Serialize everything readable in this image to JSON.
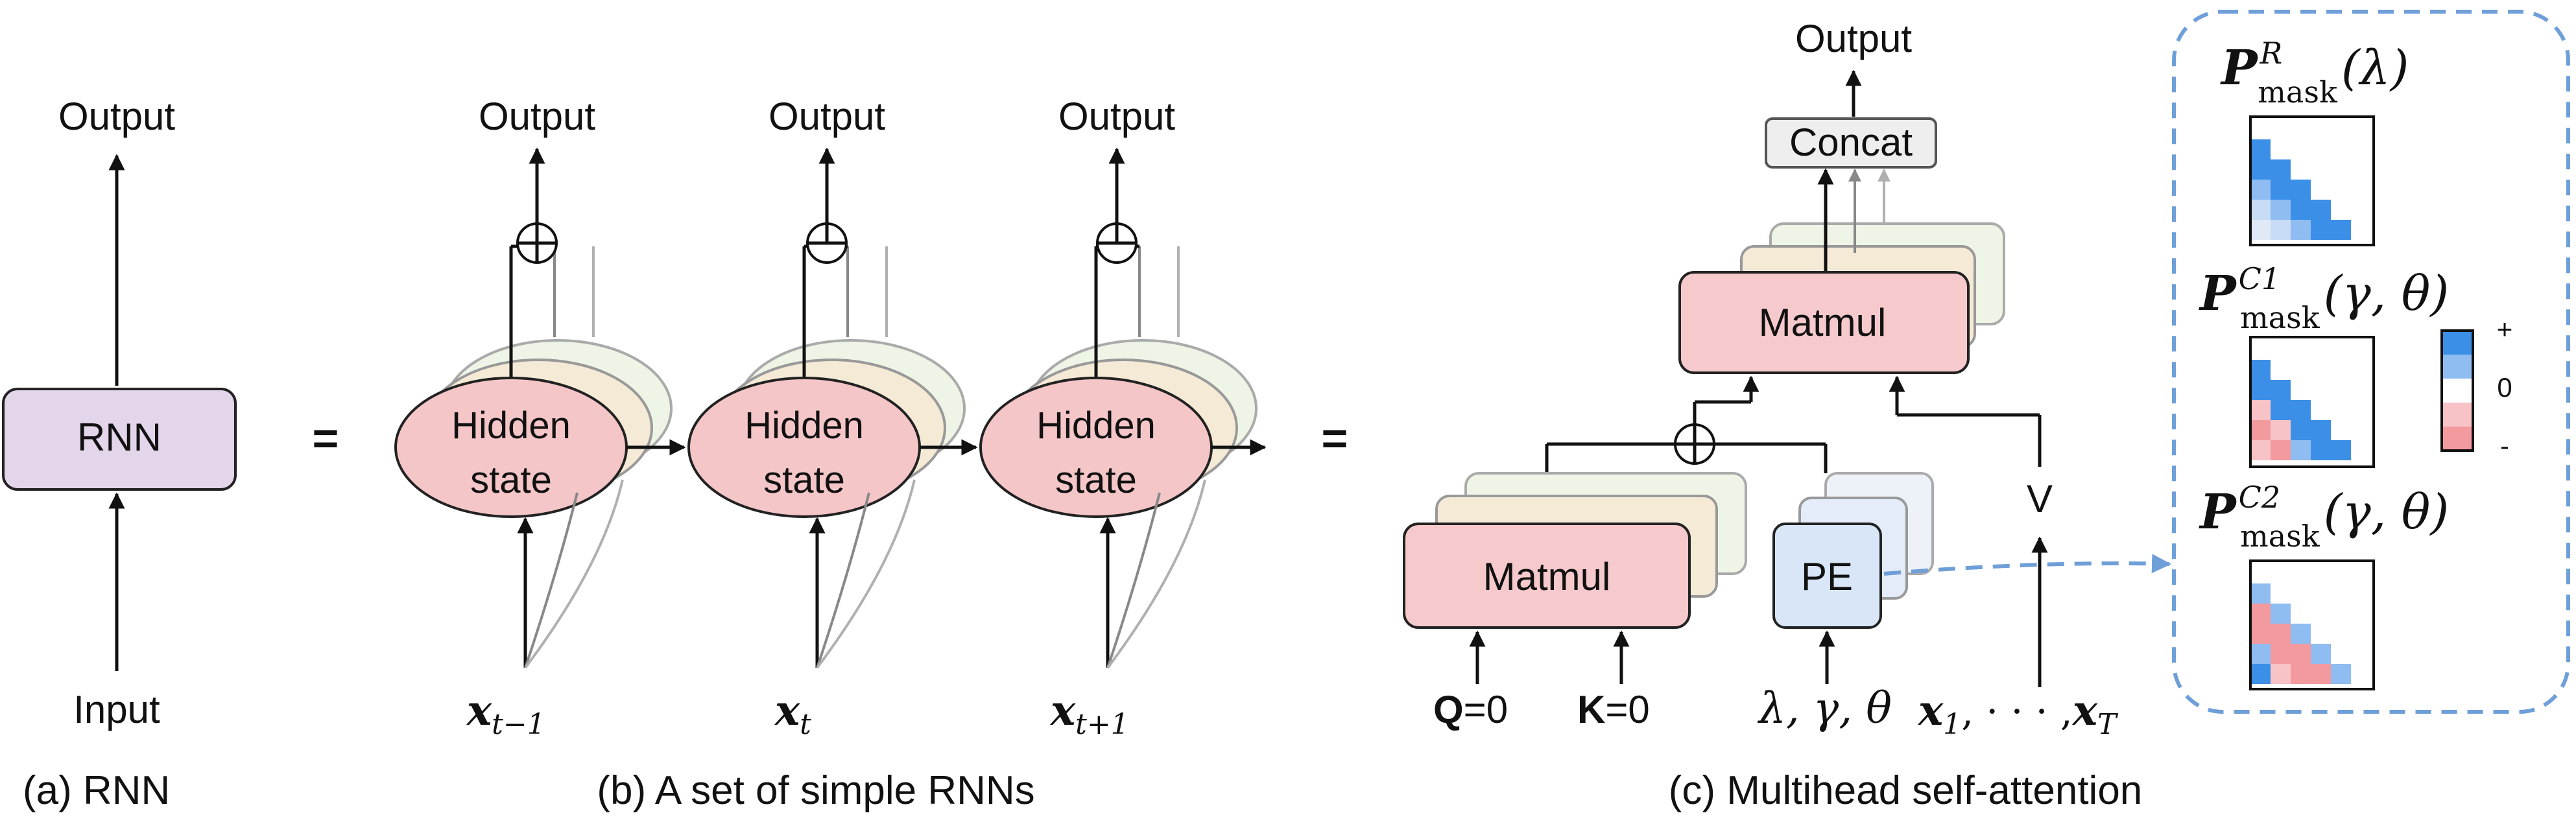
{
  "panel_a": {
    "caption": "(a) RNN",
    "node": "RNN",
    "output": "Output",
    "input": "Input"
  },
  "equals": "=",
  "panel_b": {
    "caption": "(b) A set of simple RNNs",
    "output": "Output",
    "hidden_line1": "Hidden",
    "hidden_line2": "state",
    "x_prev_base": "x",
    "x_prev_sub": "t−1",
    "x_curr_base": "x",
    "x_curr_sub": "t",
    "x_next_base": "x",
    "x_next_sub": "t+1"
  },
  "panel_c": {
    "caption": "(c) Multihead self-attention",
    "output": "Output",
    "concat": "Concat",
    "matmul": "Matmul",
    "pe": "PE",
    "v": "V",
    "q_bold": "Q",
    "q_rest": "=0",
    "k_bold": "K",
    "k_rest": "=0",
    "params": "λ, γ, θ",
    "x1_base": "x",
    "x1_sub": "1",
    "xdots": ", · · · ,",
    "xT_base": "x",
    "xT_sub": "T"
  },
  "masks": {
    "r": {
      "base": "P",
      "sup": "R",
      "sub": "mask",
      "args": "(λ)"
    },
    "c1": {
      "base": "P",
      "sup": "C1",
      "sub": "mask",
      "args": "(γ, θ)"
    },
    "c2": {
      "base": "P",
      "sup": "C2",
      "sub": "mask",
      "args": "(γ, θ)"
    },
    "legend": {
      "plus": "+",
      "zero": "0",
      "minus": "-"
    }
  },
  "colors": {
    "rnn_fill": "#e3d5ea",
    "hidden_fill": "#f5c6c8",
    "matmul_fill": "#f6cacc",
    "pe_fill": "#d8e6f7",
    "concat_fill": "#eeeeee",
    "dash_border": "#6f9fd8",
    "blue_strong": "#3b8fe6",
    "blue_mid": "#8fbcf1",
    "blue_light": "#c9dcf6",
    "red_mid": "#f39a9f",
    "red_light": "#f7c3c6"
  }
}
